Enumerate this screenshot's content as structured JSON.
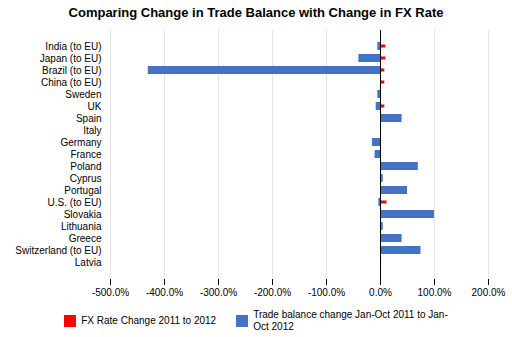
{
  "chart_data": {
    "type": "bar",
    "orientation": "horizontal",
    "title": "Comparing Change in Trade Balance with Change in FX Rate",
    "categories": [
      "India (to EU)",
      "Japan (to EU)",
      "Brazil (to EU)",
      "China (to EU)",
      "Sweden",
      "UK",
      "Spain",
      "Italy",
      "Germany",
      "France",
      "Poland",
      "Cyprus",
      "Portugal",
      "U.S. (to EU)",
      "Slovakia",
      "Lithuania",
      "Greece",
      "Switzerland (to EU)",
      "Latvia"
    ],
    "series": [
      {
        "name": "FX Rate Change 2011 to 2012",
        "color": "#FF0000",
        "values": [
          10.0,
          10.0,
          8.0,
          8.0,
          0.0,
          8.0,
          0.0,
          0.0,
          0.0,
          0.0,
          0.0,
          0.0,
          0.0,
          12.0,
          0.0,
          0.0,
          0.0,
          3.0,
          0.0
        ]
      },
      {
        "name": "Trade balance change Jan-Oct 2011 to Jan-\nOct 2012",
        "color": "#4472C4",
        "values": [
          -5.0,
          -40.0,
          -430.0,
          2.0,
          -5.0,
          -8.0,
          40.0,
          0.5,
          -15.0,
          -10.0,
          70.0,
          5.0,
          50.0,
          -3.0,
          100.0,
          5.0,
          40.0,
          75.0,
          2.0
        ]
      }
    ],
    "xlim": [
      -500.0,
      200.0
    ],
    "xticks": [
      {
        "value": -500.0,
        "label": "-500.0%"
      },
      {
        "value": -400.0,
        "label": "-400.0%"
      },
      {
        "value": -300.0,
        "label": "-300.0%"
      },
      {
        "value": -200.0,
        "label": "-200.0%"
      },
      {
        "value": -100.0,
        "label": "-100.0%"
      },
      {
        "value": 0.0,
        "label": "0.0%"
      },
      {
        "value": 100.0,
        "label": "100.0%"
      },
      {
        "value": 200.0,
        "label": "200.0%"
      }
    ],
    "grid": true,
    "legend": "bottom"
  }
}
